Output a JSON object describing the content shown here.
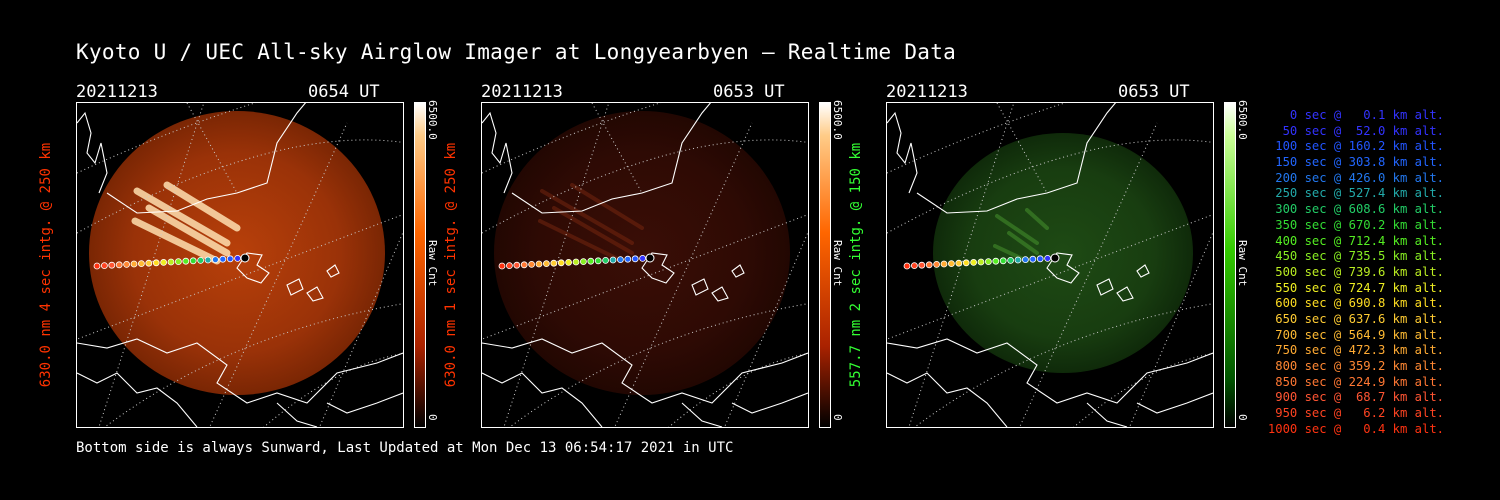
{
  "title": "Kyoto U / UEC All-sky Airglow Imager at Longyearbyen — Realtime Data",
  "footer": "Bottom side is always Sunward, Last Updated at Mon Dec 13 06:54:17 2021 in UTC",
  "panels": [
    {
      "date": "20211213",
      "time": "0654 UT",
      "ylabel": "630.0 nm 4 sec intg. @ 250 km",
      "ylabel_color": "#ff3300",
      "cbar_max": "6500.0",
      "cbar_min": "0",
      "cbar_unit": "Raw Cnt",
      "theme": "red",
      "brightness": 0.9
    },
    {
      "date": "20211213",
      "time": "0653 UT",
      "ylabel": "630.0 nm 1 sec intg. @ 250 km",
      "ylabel_color": "#ff3300",
      "cbar_max": "6500.0",
      "cbar_min": "0",
      "cbar_unit": "Raw Cnt",
      "theme": "red",
      "brightness": 0.3
    },
    {
      "date": "20211213",
      "time": "0653 UT",
      "ylabel": "557.7 nm 2 sec intg. @ 150 km",
      "ylabel_color": "#33ff33",
      "cbar_max": "6500.0",
      "cbar_min": "0",
      "cbar_unit": "Raw Cnt",
      "theme": "green",
      "brightness": 0.35
    }
  ],
  "legend": [
    {
      "text": "0 sec @   0.1 km alt.",
      "color": "#3333ff"
    },
    {
      "text": "50 sec @  52.0 km alt.",
      "color": "#3333ff"
    },
    {
      "text": "100 sec @ 160.2 km alt.",
      "color": "#2255ff"
    },
    {
      "text": "150 sec @ 303.8 km alt.",
      "color": "#2266ff"
    },
    {
      "text": "200 sec @ 426.0 km alt.",
      "color": "#2277ee"
    },
    {
      "text": "250 sec @ 527.4 km alt.",
      "color": "#22aaaa"
    },
    {
      "text": "300 sec @ 608.6 km alt.",
      "color": "#22cc66"
    },
    {
      "text": "350 sec @ 670.2 km alt.",
      "color": "#33dd33"
    },
    {
      "text": "400 sec @ 712.4 km alt.",
      "color": "#55ee22"
    },
    {
      "text": "450 sec @ 735.5 km alt.",
      "color": "#88ee22"
    },
    {
      "text": "500 sec @ 739.6 km alt.",
      "color": "#bbee22"
    },
    {
      "text": "550 sec @ 724.7 km alt.",
      "color": "#eeee22"
    },
    {
      "text": "600 sec @ 690.8 km alt.",
      "color": "#ffdd22"
    },
    {
      "text": "650 sec @ 637.6 km alt.",
      "color": "#ffcc33"
    },
    {
      "text": "700 sec @ 564.9 km alt.",
      "color": "#ffbb33"
    },
    {
      "text": "750 sec @ 472.3 km alt.",
      "color": "#ffaa33"
    },
    {
      "text": "800 sec @ 359.2 km alt.",
      "color": "#ff8833"
    },
    {
      "text": "850 sec @ 224.9 km alt.",
      "color": "#ff7733"
    },
    {
      "text": "900 sec @  68.7 km alt.",
      "color": "#ff5533"
    },
    {
      "text": "950 sec @   6.2 km alt.",
      "color": "#ff4422"
    },
    {
      "text": "1000 sec @   0.4 km alt.",
      "color": "#ff3311"
    }
  ],
  "track_colors": [
    "#3333ff",
    "#3333ff",
    "#2255ff",
    "#2266ff",
    "#2277ee",
    "#22aaaa",
    "#22cc66",
    "#33dd33",
    "#55ee22",
    "#88ee22",
    "#bbee22",
    "#eeee22",
    "#ffdd22",
    "#ffcc33",
    "#ffbb33",
    "#ffaa33",
    "#ff8833",
    "#ff7733",
    "#ff5533",
    "#ff4422",
    "#ff3311"
  ]
}
